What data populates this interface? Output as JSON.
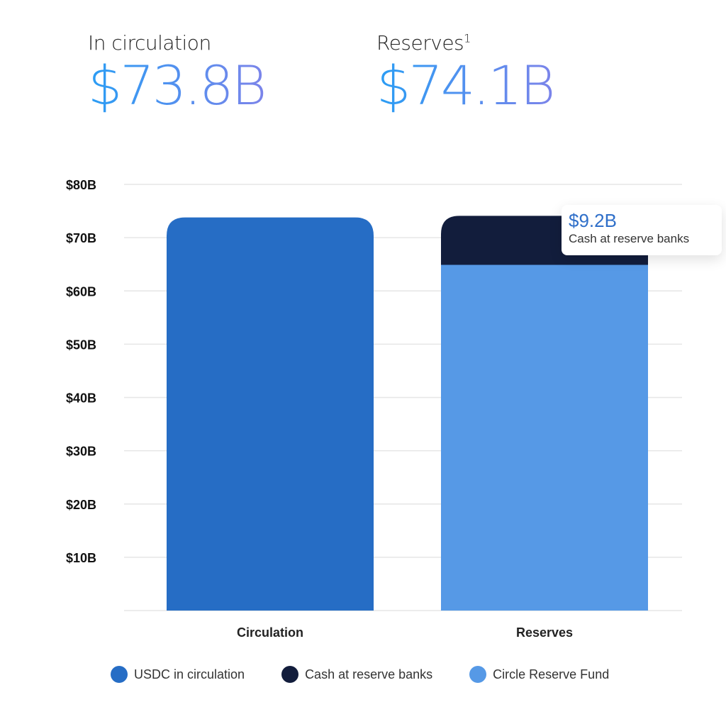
{
  "header": {
    "circulation_label": "In circulation",
    "circulation_value": "$73.8B",
    "reserves_label": "Reserves",
    "reserves_sup": "1",
    "reserves_value": "$74.1B"
  },
  "chart_data": {
    "type": "bar",
    "stacked": true,
    "categories": [
      "Circulation",
      "Reserves"
    ],
    "series": [
      {
        "name": "USDC in circulation",
        "color": "#266dc5",
        "values": [
          73.8,
          0
        ]
      },
      {
        "name": "Circle Reserve Fund",
        "color": "#5699e6",
        "values": [
          0,
          64.9
        ]
      },
      {
        "name": "Cash at reserve banks",
        "color": "#121d3c",
        "values": [
          0,
          9.2
        ]
      }
    ],
    "ylim": [
      0,
      80
    ],
    "yticks": [
      10,
      20,
      30,
      40,
      50,
      60,
      70,
      80
    ],
    "ytick_labels": [
      "$10B",
      "$20B",
      "$30B",
      "$40B",
      "$50B",
      "$60B",
      "$70B",
      "$80B"
    ],
    "grid": true,
    "legend_position": "bottom",
    "annotation": {
      "value": "$9.2B",
      "label": "Cash at reserve banks"
    }
  },
  "legend": [
    {
      "label": "USDC in circulation",
      "color": "#266dc5"
    },
    {
      "label": "Cash at reserve banks",
      "color": "#121d3c"
    },
    {
      "label": "Circle Reserve Fund",
      "color": "#5699e6"
    }
  ]
}
